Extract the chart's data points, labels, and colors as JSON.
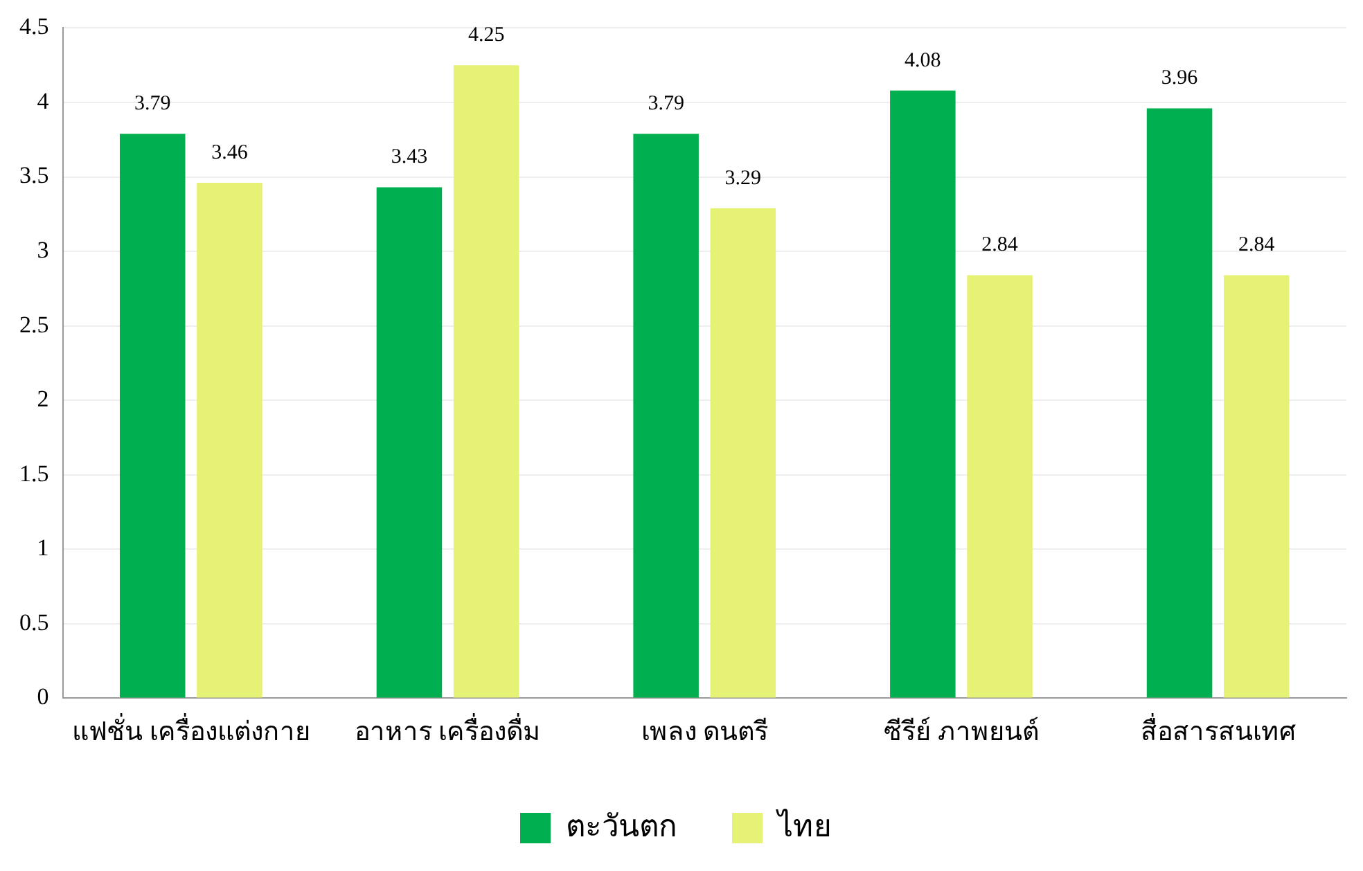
{
  "chart_data": {
    "type": "bar",
    "categories": [
      "แฟชั่น เครื่องแต่งกาย",
      "อาหาร เครื่องดื่ม",
      "เพลง ดนตรี",
      "ซีรีย์ ภาพยนต์",
      "สื่อสารสนเทศ"
    ],
    "series": [
      {
        "name": "ตะวันตก",
        "color": "#00b050",
        "values": [
          3.79,
          3.43,
          3.79,
          4.08,
          3.96
        ]
      },
      {
        "name": "ไทย",
        "color": "#e6f275",
        "values": [
          3.46,
          4.25,
          3.29,
          2.84,
          2.84
        ]
      }
    ],
    "ylim": [
      0,
      4.5
    ],
    "yticks": [
      0,
      0.5,
      1,
      1.5,
      2,
      2.5,
      3,
      3.5,
      4,
      4.5
    ],
    "grid": "y",
    "legend": "bottom",
    "data_labels": true
  }
}
